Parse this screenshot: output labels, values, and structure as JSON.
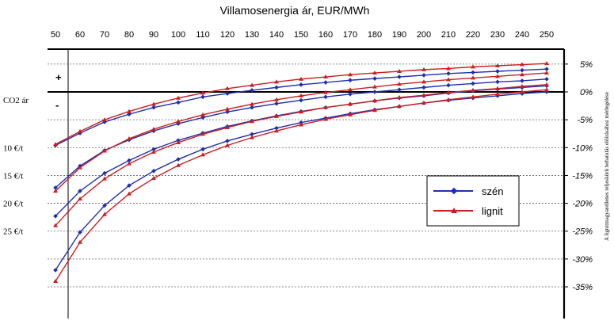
{
  "chart_data": {
    "type": "line",
    "title": "Villamosenergia ár, EUR/MWh",
    "xlabel": "Villamosenergia ár, EUR/MWh",
    "x_ticks": [
      50,
      60,
      70,
      80,
      90,
      100,
      110,
      120,
      130,
      140,
      150,
      160,
      170,
      180,
      190,
      200,
      210,
      220,
      230,
      240,
      250
    ],
    "xlim": [
      50,
      250
    ],
    "ylim": [
      -35,
      5
    ],
    "y_ticks_right": [
      "5%",
      "0%",
      "-5%",
      "-10%",
      "-15%",
      "-20%",
      "-25%",
      "-30%",
      "-35%"
    ],
    "y_ticks_right_values": [
      5,
      0,
      -5,
      -10,
      -15,
      -20,
      -25,
      -30,
      -35
    ],
    "left_labels": [
      {
        "text": "CO2 ár",
        "y": 0
      },
      {
        "text": "10 €/t",
        "y": -10
      },
      {
        "text": "15 €/t",
        "y": -15
      },
      {
        "text": "20 €/t",
        "y": -20
      },
      {
        "text": "25 €/t",
        "y": -25
      }
    ],
    "sign_labels": {
      "plus": "+",
      "minus": "-"
    },
    "right_axis_label": "A lignitmagyarellenes teljeskörű behatolás előírásához mérlegelése",
    "grid": {
      "horizontal_dotted": true,
      "vertical": false
    },
    "legend_position": "center-right",
    "x": [
      50,
      60,
      70,
      80,
      90,
      100,
      110,
      120,
      130,
      140,
      150,
      160,
      170,
      180,
      190,
      200,
      210,
      220,
      230,
      240,
      250
    ],
    "series": [
      {
        "name": "szén",
        "group": "10 €/t",
        "values": [
          -9.6,
          -7.4,
          -5.4,
          -4.0,
          -2.8,
          -1.9,
          -0.9,
          -0.3,
          0.3,
          0.8,
          1.3,
          1.7,
          2.1,
          2.4,
          2.7,
          3.0,
          3.3,
          3.5,
          3.7,
          3.9,
          4.1
        ]
      },
      {
        "name": "lignit",
        "group": "10 €/t",
        "values": [
          -9.4,
          -7.1,
          -5.0,
          -3.5,
          -2.2,
          -1.1,
          -0.2,
          0.6,
          1.2,
          1.8,
          2.3,
          2.7,
          3.1,
          3.4,
          3.7,
          4.0,
          4.2,
          4.5,
          4.7,
          4.9,
          5.1
        ]
      },
      {
        "name": "szén",
        "group": "15 €/t",
        "values": [
          -17.2,
          -13.3,
          -10.5,
          -8.6,
          -7.0,
          -5.7,
          -4.6,
          -3.6,
          -2.8,
          -2.1,
          -1.5,
          -0.9,
          -0.4,
          0.0,
          0.4,
          0.8,
          1.2,
          1.5,
          1.8,
          2.0,
          2.3
        ]
      },
      {
        "name": "lignit",
        "group": "15 €/t",
        "values": [
          -17.8,
          -13.6,
          -10.6,
          -8.4,
          -6.7,
          -5.3,
          -4.1,
          -3.1,
          -2.2,
          -1.4,
          -0.7,
          -0.1,
          0.4,
          0.9,
          1.4,
          1.8,
          2.2,
          2.5,
          2.8,
          3.1,
          3.4
        ]
      },
      {
        "name": "szén",
        "group": "20 €/t",
        "values": [
          -22.3,
          -17.8,
          -14.6,
          -12.3,
          -10.3,
          -8.7,
          -7.4,
          -6.2,
          -5.2,
          -4.3,
          -3.5,
          -2.8,
          -2.2,
          -1.6,
          -1.1,
          -0.7,
          -0.2,
          0.2,
          0.5,
          0.8,
          1.1
        ]
      },
      {
        "name": "lignit",
        "group": "20 €/t",
        "values": [
          -24.0,
          -19.2,
          -15.6,
          -12.9,
          -10.8,
          -9.1,
          -7.6,
          -6.4,
          -5.3,
          -4.4,
          -3.6,
          -2.8,
          -2.2,
          -1.6,
          -1.0,
          -0.6,
          -0.1,
          0.3,
          0.6,
          1.0,
          1.3
        ]
      },
      {
        "name": "szén",
        "group": "25 €/t",
        "values": [
          -32.0,
          -25.2,
          -20.4,
          -16.8,
          -14.2,
          -12.1,
          -10.3,
          -8.8,
          -7.6,
          -6.5,
          -5.5,
          -4.7,
          -3.9,
          -3.2,
          -2.6,
          -2.0,
          -1.5,
          -1.1,
          -0.7,
          -0.3,
          0.0
        ]
      },
      {
        "name": "lignit",
        "group": "25 €/t",
        "values": [
          -34.0,
          -27.0,
          -22.0,
          -18.3,
          -15.5,
          -13.2,
          -11.3,
          -9.6,
          -8.2,
          -7.0,
          -5.9,
          -4.9,
          -4.1,
          -3.3,
          -2.6,
          -2.0,
          -1.4,
          -0.9,
          -0.4,
          0.0,
          0.4
        ]
      }
    ],
    "legend": [
      {
        "name": "szén",
        "color": "#1f2fb0",
        "marker": "diamond"
      },
      {
        "name": "lignit",
        "color": "#cc1f1f",
        "marker": "triangle"
      }
    ],
    "colors": {
      "szen": "#1f2fb0",
      "lignit": "#cc1f1f",
      "zero_line": "#000000",
      "grid": "#666666"
    }
  }
}
